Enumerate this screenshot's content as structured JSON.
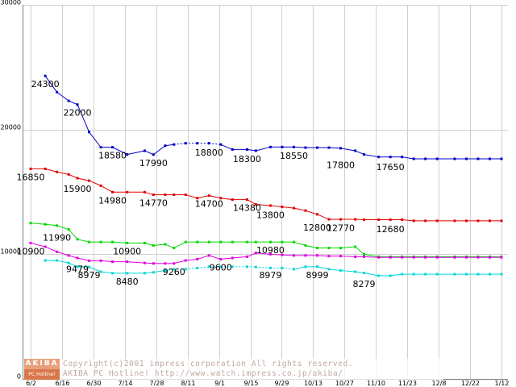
{
  "chart_data": {
    "type": "line",
    "title": "",
    "xlabel": "",
    "ylabel": "",
    "ylim": [
      0,
      30000
    ],
    "yticks": [
      0,
      10000,
      20000,
      30000
    ],
    "ytick_labels": [
      "0",
      "10000",
      "20000",
      "30000"
    ],
    "grid": true,
    "categories": [
      "6/2",
      "6/16",
      "6/30",
      "7/14",
      "7/28",
      "8/11",
      "9/1",
      "9/15",
      "9/29",
      "10/13",
      "10/27",
      "11/10",
      "11/23",
      "12/8",
      "12/22",
      "1/12"
    ],
    "x": [
      2,
      7,
      11,
      15,
      18,
      22,
      26,
      30,
      35,
      41,
      44,
      48,
      51,
      55,
      59,
      63,
      67,
      71,
      76,
      79,
      84,
      88,
      92,
      96,
      100,
      104,
      108,
      113,
      116,
      121,
      125,
      129,
      133,
      137,
      141,
      147,
      151,
      155,
      159,
      163
    ],
    "series": [
      {
        "color": "#0000c8",
        "values": [
          null,
          24300,
          23000,
          22300,
          22000,
          19800,
          18580,
          18580,
          18000,
          18300,
          17990,
          18700,
          18800,
          18900,
          18900,
          18900,
          18800,
          18400,
          18400,
          18300,
          18600,
          18600,
          18600,
          18550,
          18550,
          18550,
          18500,
          18300,
          18000,
          17800,
          17800,
          17800,
          17650,
          17650,
          17650,
          17650,
          17650,
          17650,
          17650,
          17650
        ],
        "dashed_ranges": [
          [
            12,
            16
          ]
        ]
      },
      {
        "color": "#e00000",
        "values": [
          16850,
          16850,
          16600,
          16400,
          16100,
          15900,
          15500,
          14980,
          14980,
          14980,
          14770,
          14770,
          14770,
          14770,
          14500,
          14700,
          14500,
          14380,
          14380,
          14000,
          13900,
          13800,
          13700,
          13500,
          13200,
          12800,
          12800,
          12800,
          12770,
          12770,
          12770,
          12770,
          12680,
          12680,
          12680,
          12680,
          12680,
          12680,
          12680,
          12680
        ]
      },
      {
        "color": "#00d800",
        "values": [
          12500,
          12400,
          12300,
          11990,
          11200,
          10980,
          10980,
          10980,
          10900,
          10900,
          10700,
          10800,
          10500,
          10980,
          10980,
          10980,
          10980,
          10980,
          10980,
          10980,
          10980,
          10980,
          10980,
          10700,
          10500,
          10500,
          10500,
          10600,
          10000,
          9800,
          9800,
          9800,
          9800,
          9800,
          9800,
          9800,
          9800,
          9800,
          9800,
          9800
        ]
      },
      {
        "color": "#e000e0",
        "values": [
          10900,
          10600,
          10200,
          9900,
          9700,
          9479,
          9479,
          9400,
          9400,
          9300,
          9260,
          9260,
          9260,
          9500,
          9600,
          9900,
          9600,
          9700,
          9800,
          10100,
          10000,
          9950,
          9900,
          9900,
          9900,
          9850,
          9850,
          9800,
          9800,
          9750,
          9750,
          9750,
          9750,
          9750,
          9750,
          9750,
          9750,
          9750,
          9750,
          9750
        ]
      },
      {
        "color": "#00d8d8",
        "values": [
          null,
          9500,
          9500,
          9300,
          9000,
          8979,
          8600,
          8480,
          8480,
          8480,
          8550,
          8700,
          8800,
          8800,
          8900,
          9000,
          9000,
          9000,
          9000,
          8979,
          8900,
          8900,
          8800,
          8999,
          8999,
          8800,
          8700,
          8600,
          8500,
          8279,
          8279,
          8400,
          8400,
          8400,
          8400,
          8400,
          8400,
          8400,
          8400,
          8400
        ],
        "dashed_ranges": [
          [
            11,
            22
          ]
        ]
      }
    ],
    "annotations": [
      {
        "text": "24300",
        "x": 7,
        "y": 24300,
        "color": "#0000c8"
      },
      {
        "text": "22000",
        "x": 18,
        "y": 22000,
        "color": "#0000c8"
      },
      {
        "text": "18580",
        "x": 30,
        "y": 18580,
        "color": "#0000c8"
      },
      {
        "text": "17990",
        "x": 44,
        "y": 17990,
        "color": "#0000c8"
      },
      {
        "text": "18800",
        "x": 63,
        "y": 18800,
        "color": "#0000c8"
      },
      {
        "text": "18300",
        "x": 76,
        "y": 18300,
        "color": "#0000c8"
      },
      {
        "text": "18550",
        "x": 92,
        "y": 18550,
        "color": "#0000c8"
      },
      {
        "text": "17800",
        "x": 108,
        "y": 17800,
        "color": "#0000c8"
      },
      {
        "text": "17650",
        "x": 125,
        "y": 17650,
        "color": "#0000c8"
      },
      {
        "text": "16850",
        "x": 2,
        "y": 16850,
        "color": "#e00000"
      },
      {
        "text": "15900",
        "x": 18,
        "y": 15900,
        "color": "#e00000"
      },
      {
        "text": "14980",
        "x": 30,
        "y": 14980,
        "color": "#e00000"
      },
      {
        "text": "14770",
        "x": 44,
        "y": 14770,
        "color": "#e00000"
      },
      {
        "text": "14700",
        "x": 63,
        "y": 14700,
        "color": "#e00000"
      },
      {
        "text": "14380",
        "x": 76,
        "y": 14380,
        "color": "#e00000"
      },
      {
        "text": "13800",
        "x": 84,
        "y": 13800,
        "color": "#e00000"
      },
      {
        "text": "12800",
        "x": 100,
        "y": 12800,
        "color": "#e00000"
      },
      {
        "text": "12770",
        "x": 108,
        "y": 12770,
        "color": "#e00000"
      },
      {
        "text": "12680",
        "x": 125,
        "y": 12680,
        "color": "#e00000"
      },
      {
        "text": "11990",
        "x": 11,
        "y": 11990,
        "color": "#00d800"
      },
      {
        "text": "10900",
        "x": 35,
        "y": 10900,
        "color": "#00d800"
      },
      {
        "text": "10980",
        "x": 84,
        "y": 10980,
        "color": "#00d800"
      },
      {
        "text": "10900",
        "x": 2,
        "y": 10900,
        "color": "#e000e0"
      },
      {
        "text": "9479",
        "x": 18,
        "y": 9479,
        "color": "#e000e0"
      },
      {
        "text": "9260",
        "x": 51,
        "y": 9260,
        "color": "#e000e0"
      },
      {
        "text": "9600",
        "x": 67,
        "y": 9600,
        "color": "#e000e0"
      },
      {
        "text": "8979",
        "x": 22,
        "y": 8979,
        "color": "#00d8d8"
      },
      {
        "text": "8480",
        "x": 35,
        "y": 8480,
        "color": "#00d8d8"
      },
      {
        "text": "8979",
        "x": 84,
        "y": 8979,
        "color": "#00d8d8"
      },
      {
        "text": "8999",
        "x": 100,
        "y": 8999,
        "color": "#00d8d8"
      },
      {
        "text": "8279",
        "x": 116,
        "y": 8279,
        "color": "#00d8d8"
      }
    ]
  },
  "watermark": {
    "logo_top": "AKIBA",
    "logo_bottom": "PC Hotline!",
    "line1": "Copyright(c)2001 impress corporation All rights reserved.",
    "line2": "AKIBA PC Hotline!  http://www.watch.impress.co.jp/akiba/"
  }
}
